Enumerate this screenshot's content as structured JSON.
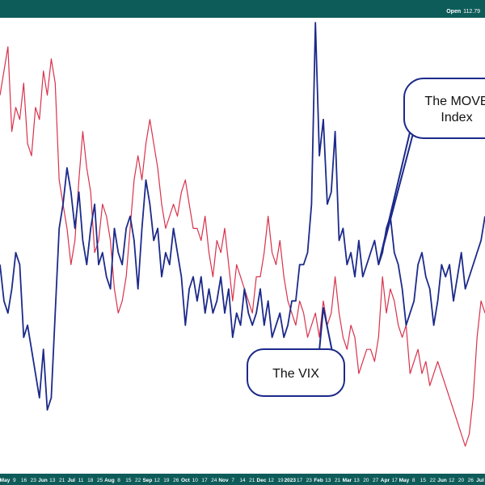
{
  "header": {
    "open_label": "Open",
    "open_value": "112.79"
  },
  "chart_data": {
    "type": "line",
    "title": "",
    "xlabel": "",
    "ylabel": "",
    "grid": false,
    "series": [
      {
        "name": "The VIX",
        "color": "#d8324b",
        "values": [
          31,
          33,
          35,
          28,
          30,
          29,
          32,
          27,
          26,
          30,
          29,
          33,
          31,
          34,
          32,
          24,
          22,
          20,
          17,
          19,
          24,
          28,
          25,
          23,
          18,
          19,
          22,
          21,
          19,
          15,
          13,
          14,
          16,
          20,
          24,
          26,
          24,
          27,
          29,
          27,
          25,
          22,
          20,
          21,
          22,
          21,
          23,
          24,
          22,
          20,
          20,
          19,
          21,
          18,
          16,
          19,
          18,
          20,
          17,
          14,
          17,
          16,
          15,
          14,
          13,
          16,
          16,
          18,
          21,
          18,
          17,
          19,
          16,
          14,
          13,
          12,
          14,
          13,
          11,
          12,
          13,
          11,
          14,
          12,
          13,
          16,
          13,
          11,
          10,
          12,
          11,
          8,
          9,
          10,
          10,
          9,
          11,
          16,
          13,
          15,
          14,
          12,
          11,
          12,
          8,
          9,
          10,
          8,
          9,
          7,
          8,
          9,
          8,
          7,
          6,
          5,
          4,
          3,
          2,
          3,
          6,
          11,
          14,
          13
        ],
        "labels": [
          "The VIX"
        ]
      },
      {
        "name": "The MOVE Index",
        "color": "#1c2a8a",
        "values": [
          17,
          14,
          13,
          15,
          18,
          17,
          11,
          12,
          10,
          8,
          6,
          10,
          5,
          6,
          13,
          20,
          22,
          25,
          23,
          20,
          23,
          19,
          17,
          20,
          22,
          17,
          18,
          16,
          15,
          20,
          18,
          17,
          20,
          21,
          19,
          15,
          20,
          24,
          22,
          19,
          20,
          16,
          18,
          17,
          20,
          18,
          16,
          12,
          15,
          16,
          14,
          16,
          13,
          15,
          13,
          14,
          16,
          13,
          15,
          11,
          13,
          12,
          15,
          13,
          12,
          13,
          15,
          12,
          14,
          11,
          12,
          13,
          11,
          12,
          14,
          14,
          17,
          17,
          18,
          22,
          37,
          26,
          29,
          22,
          23,
          28,
          19,
          20,
          17,
          18,
          16,
          19,
          16,
          17,
          18,
          19,
          17,
          18,
          20,
          21,
          18,
          17,
          15,
          12,
          13,
          14,
          17,
          18,
          16,
          15,
          12,
          14,
          17,
          16,
          17,
          14,
          16,
          18,
          15,
          16,
          17,
          18,
          19,
          21
        ]
      }
    ],
    "x_ticks": [
      {
        "label": "May",
        "major": true
      },
      {
        "label": "9"
      },
      {
        "label": "16"
      },
      {
        "label": "23"
      },
      {
        "label": "Jun",
        "major": true
      },
      {
        "label": "13"
      },
      {
        "label": "21"
      },
      {
        "label": "Jul",
        "major": true
      },
      {
        "label": "11"
      },
      {
        "label": "18"
      },
      {
        "label": "25"
      },
      {
        "label": "Aug",
        "major": true
      },
      {
        "label": "8"
      },
      {
        "label": "15"
      },
      {
        "label": "22"
      },
      {
        "label": "Sep",
        "major": true
      },
      {
        "label": "12"
      },
      {
        "label": "19"
      },
      {
        "label": "26"
      },
      {
        "label": "Oct",
        "major": true
      },
      {
        "label": "10"
      },
      {
        "label": "17"
      },
      {
        "label": "24"
      },
      {
        "label": "Nov",
        "major": true
      },
      {
        "label": "7"
      },
      {
        "label": "14"
      },
      {
        "label": "21"
      },
      {
        "label": "Dec",
        "major": true
      },
      {
        "label": "12"
      },
      {
        "label": "19"
      },
      {
        "label": "2023",
        "major": true
      },
      {
        "label": "17"
      },
      {
        "label": "23"
      },
      {
        "label": "Feb",
        "major": true
      },
      {
        "label": "13"
      },
      {
        "label": "21"
      },
      {
        "label": "Mar",
        "major": true
      },
      {
        "label": "13"
      },
      {
        "label": "20"
      },
      {
        "label": "27"
      },
      {
        "label": "Apr",
        "major": true
      },
      {
        "label": "17"
      },
      {
        "label": "May",
        "major": true
      },
      {
        "label": "8"
      },
      {
        "label": "15"
      },
      {
        "label": "22"
      },
      {
        "label": "Jun",
        "major": true
      },
      {
        "label": "12"
      },
      {
        "label": "20"
      },
      {
        "label": "26"
      },
      {
        "label": "Jul",
        "major": true
      }
    ],
    "annotations": [
      {
        "text_lines": [
          "The MOVE",
          "Index"
        ],
        "target_series": "The MOVE Index"
      },
      {
        "text_lines": [
          "The VIX"
        ],
        "target_series": "The VIX"
      }
    ]
  }
}
